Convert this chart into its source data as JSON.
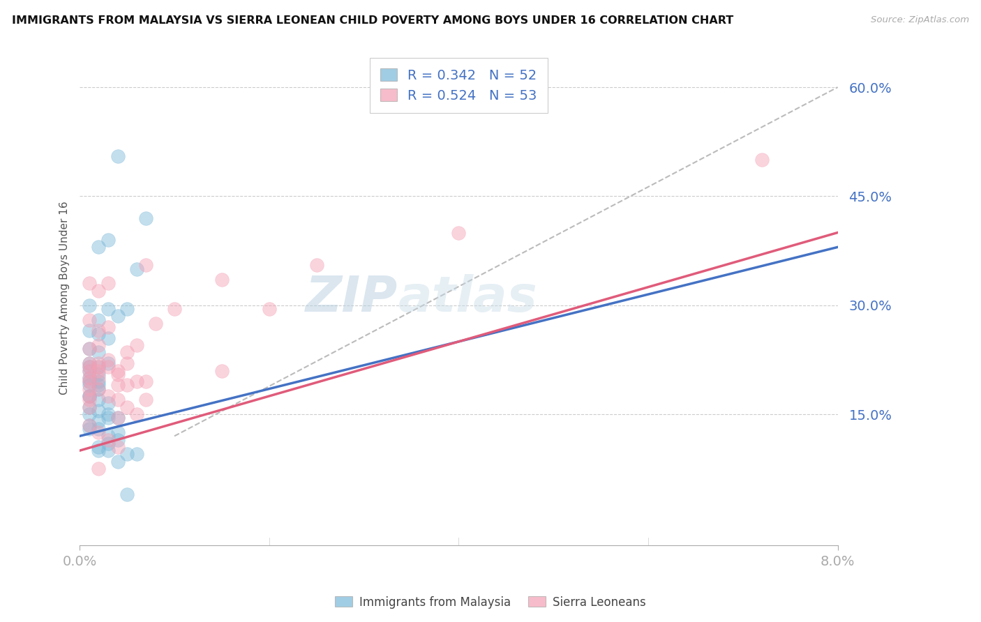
{
  "title": "IMMIGRANTS FROM MALAYSIA VS SIERRA LEONEAN CHILD POVERTY AMONG BOYS UNDER 16 CORRELATION CHART",
  "source": "Source: ZipAtlas.com",
  "ylabel_label": "Child Poverty Among Boys Under 16",
  "legend_entry1_r": "R = 0.342",
  "legend_entry1_n": "N = 52",
  "legend_entry2_r": "R = 0.524",
  "legend_entry2_n": "N = 53",
  "legend_label1": "Immigrants from Malaysia",
  "legend_label2": "Sierra Leoneans",
  "blue_color": "#7ab8d9",
  "pink_color": "#f4a0b5",
  "xlim": [
    0.0,
    0.08
  ],
  "ylim": [
    -0.03,
    0.65
  ],
  "yticks": [
    0.15,
    0.3,
    0.45,
    0.6
  ],
  "ytick_labels": [
    "15.0%",
    "30.0%",
    "45.0%",
    "60.0%"
  ],
  "xticks": [
    0.0,
    0.08
  ],
  "xtick_labels": [
    "0.0%",
    "8.0%"
  ],
  "blue_line_x": [
    0.0,
    0.08
  ],
  "blue_line_y": [
    0.12,
    0.38
  ],
  "pink_line_x": [
    0.0,
    0.08
  ],
  "pink_line_y": [
    0.1,
    0.4
  ],
  "gray_line_x": [
    0.01,
    0.08
  ],
  "gray_line_y": [
    0.12,
    0.6
  ],
  "blue_x": [
    0.004,
    0.007,
    0.003,
    0.006,
    0.002,
    0.005,
    0.001,
    0.003,
    0.004,
    0.002,
    0.001,
    0.002,
    0.003,
    0.001,
    0.002,
    0.003,
    0.001,
    0.002,
    0.001,
    0.001,
    0.002,
    0.001,
    0.002,
    0.001,
    0.002,
    0.001,
    0.002,
    0.001,
    0.001,
    0.002,
    0.003,
    0.001,
    0.002,
    0.001,
    0.003,
    0.003,
    0.004,
    0.002,
    0.001,
    0.001,
    0.002,
    0.004,
    0.003,
    0.004,
    0.003,
    0.002,
    0.003,
    0.002,
    0.005,
    0.006,
    0.004,
    0.005
  ],
  "blue_y": [
    0.505,
    0.42,
    0.39,
    0.35,
    0.38,
    0.295,
    0.3,
    0.295,
    0.285,
    0.28,
    0.265,
    0.26,
    0.255,
    0.24,
    0.235,
    0.22,
    0.22,
    0.215,
    0.215,
    0.21,
    0.205,
    0.2,
    0.195,
    0.195,
    0.19,
    0.19,
    0.185,
    0.175,
    0.175,
    0.17,
    0.165,
    0.16,
    0.155,
    0.15,
    0.15,
    0.145,
    0.145,
    0.14,
    0.135,
    0.13,
    0.13,
    0.125,
    0.12,
    0.115,
    0.11,
    0.105,
    0.1,
    0.1,
    0.095,
    0.095,
    0.085,
    0.04
  ],
  "pink_x": [
    0.072,
    0.04,
    0.025,
    0.02,
    0.015,
    0.015,
    0.01,
    0.008,
    0.007,
    0.006,
    0.005,
    0.004,
    0.003,
    0.003,
    0.002,
    0.002,
    0.002,
    0.002,
    0.002,
    0.001,
    0.001,
    0.001,
    0.001,
    0.001,
    0.001,
    0.001,
    0.001,
    0.001,
    0.001,
    0.001,
    0.001,
    0.002,
    0.002,
    0.002,
    0.003,
    0.003,
    0.003,
    0.004,
    0.004,
    0.004,
    0.004,
    0.005,
    0.005,
    0.005,
    0.006,
    0.006,
    0.007,
    0.007,
    0.001,
    0.002,
    0.003,
    0.004,
    0.002
  ],
  "pink_y": [
    0.5,
    0.4,
    0.355,
    0.295,
    0.335,
    0.21,
    0.295,
    0.275,
    0.355,
    0.245,
    0.235,
    0.205,
    0.33,
    0.225,
    0.32,
    0.22,
    0.21,
    0.2,
    0.185,
    0.33,
    0.28,
    0.24,
    0.22,
    0.215,
    0.21,
    0.2,
    0.195,
    0.185,
    0.175,
    0.17,
    0.16,
    0.265,
    0.245,
    0.215,
    0.27,
    0.215,
    0.175,
    0.21,
    0.19,
    0.17,
    0.145,
    0.22,
    0.19,
    0.16,
    0.195,
    0.15,
    0.195,
    0.17,
    0.135,
    0.125,
    0.115,
    0.105,
    0.075
  ]
}
